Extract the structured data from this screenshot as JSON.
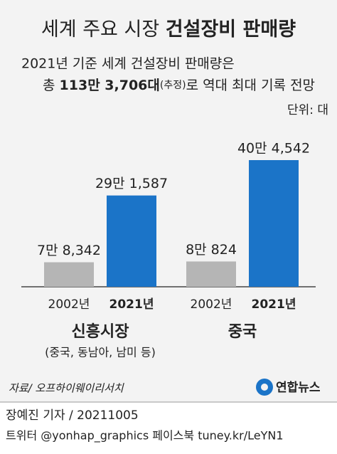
{
  "chart_data": {
    "type": "bar",
    "title": [
      "세계 주요 시장",
      "건설장비 판매량"
    ],
    "subtitle": [
      "2021년 기준 세계 건설장비 판매량은",
      [
        "총 ",
        "113만 3,706대",
        "(추정)",
        "로 역대 최대 기록 전망"
      ]
    ],
    "unit": "단위: 대",
    "categories": [
      "신흥시장",
      "중국"
    ],
    "category_note": "(중국, 동남아, 남미 등)",
    "series": [
      {
        "name": "2002년",
        "color": "#b5b5b5",
        "values": [
          78342,
          80824
        ],
        "value_labels": [
          "7만 8,342",
          "8만 824"
        ]
      },
      {
        "name": "2021년",
        "color": "#1b74c8",
        "values": [
          291587,
          404542
        ],
        "value_labels": [
          "29만 1,587",
          "40만 4,542"
        ]
      }
    ],
    "source": "자료/ 오프하이웨이리서치",
    "logo": "연합뉴스",
    "byline": "장예진 기자 / 20211005",
    "social": "트위터 @yonhap_graphics  페이스북 tuney.kr/LeYN1"
  }
}
